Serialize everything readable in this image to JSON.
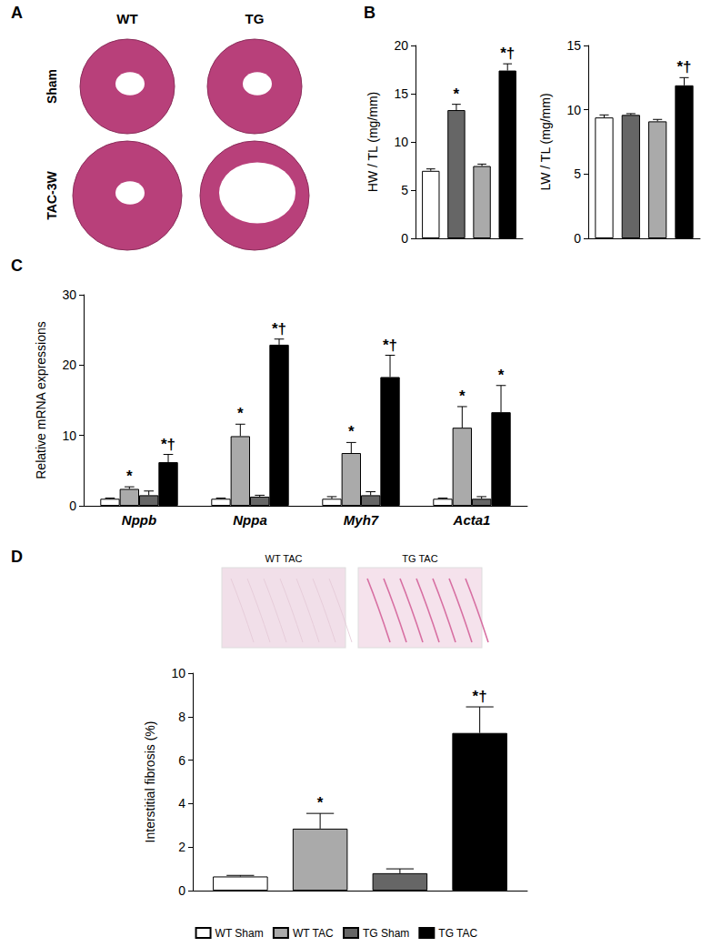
{
  "panel_labels": [
    "A",
    "B",
    "C",
    "D"
  ],
  "panel_a": {
    "columns": [
      "WT",
      "TG"
    ],
    "rows": [
      "Sham",
      "TAC-3W"
    ]
  },
  "panel_d_images": [
    "WT TAC",
    "TG TAC"
  ],
  "chart_data": [
    {
      "type": "bar",
      "y_label": "HW / TL (mg/mm)",
      "categories": [
        null
      ],
      "ylim": [
        0,
        20
      ],
      "yticks": [
        0,
        5,
        10,
        15,
        20
      ],
      "series": [
        {
          "name": "WT Sham",
          "color": "#ffffff",
          "values": [
            7.0
          ],
          "errors": [
            0.2
          ],
          "annotations": [
            null
          ]
        },
        {
          "name": "WT TAC",
          "color": "#666666",
          "values": [
            13.3
          ],
          "errors": [
            0.6
          ],
          "annotations": [
            "*"
          ]
        },
        {
          "name": "TG Sham",
          "color": "#aaaaaa",
          "values": [
            7.5
          ],
          "errors": [
            0.2
          ],
          "annotations": [
            null
          ]
        },
        {
          "name": "TG TAC",
          "color": "#000000",
          "values": [
            17.4
          ],
          "errors": [
            0.7
          ],
          "annotations": [
            "*†"
          ]
        }
      ]
    },
    {
      "type": "bar",
      "y_label": "LW / TL (mg/mm)",
      "categories": [
        null
      ],
      "ylim": [
        0,
        15
      ],
      "yticks": [
        0,
        5,
        10,
        15
      ],
      "series": [
        {
          "name": "WT Sham",
          "color": "#ffffff",
          "values": [
            9.4
          ],
          "errors": [
            0.2
          ],
          "annotations": [
            null
          ]
        },
        {
          "name": "WT TAC",
          "color": "#666666",
          "values": [
            9.6
          ],
          "errors": [
            0.1
          ],
          "annotations": [
            null
          ]
        },
        {
          "name": "TG Sham",
          "color": "#aaaaaa",
          "values": [
            9.1
          ],
          "errors": [
            0.15
          ],
          "annotations": [
            null
          ]
        },
        {
          "name": "TG TAC",
          "color": "#000000",
          "values": [
            11.9
          ],
          "errors": [
            0.6
          ],
          "annotations": [
            "*†"
          ]
        }
      ]
    },
    {
      "type": "bar",
      "y_label": "Relative mRNA expressions",
      "categories": [
        "Nppb",
        "Nppa",
        "Myh7",
        "Acta1"
      ],
      "ylim": [
        0,
        30
      ],
      "yticks": [
        0,
        10,
        20,
        30
      ],
      "series": [
        {
          "name": "WT Sham",
          "color": "#ffffff",
          "values": [
            1.0,
            1.0,
            1.0,
            1.0
          ],
          "errors": [
            0.1,
            0.1,
            0.3,
            0.1
          ],
          "annotations": [
            null,
            null,
            null,
            null
          ]
        },
        {
          "name": "WT TAC",
          "color": "#aaaaaa",
          "values": [
            2.4,
            9.9,
            7.5,
            11.1
          ],
          "errors": [
            0.3,
            1.7,
            1.5,
            3.0
          ],
          "annotations": [
            "*",
            "*",
            "*",
            "*"
          ]
        },
        {
          "name": "TG Sham",
          "color": "#666666",
          "values": [
            1.5,
            1.3,
            1.5,
            1.0
          ],
          "errors": [
            0.6,
            0.2,
            0.5,
            0.3
          ],
          "annotations": [
            null,
            null,
            null,
            null
          ]
        },
        {
          "name": "TG TAC",
          "color": "#000000",
          "values": [
            6.2,
            22.9,
            18.3,
            13.3
          ],
          "errors": [
            1.1,
            0.8,
            3.1,
            3.8
          ],
          "annotations": [
            "*†",
            "*†",
            "*†",
            "*"
          ]
        }
      ]
    },
    {
      "type": "bar",
      "y_label": "Interstitial fibrosis (%)",
      "categories": [
        null
      ],
      "ylim": [
        0,
        10
      ],
      "yticks": [
        0,
        2,
        4,
        6,
        8,
        10
      ],
      "legend": "bottom",
      "series": [
        {
          "name": "WT Sham",
          "color": "#ffffff",
          "values": [
            0.65
          ],
          "errors": [
            0.05
          ],
          "annotations": [
            null
          ]
        },
        {
          "name": "WT TAC",
          "color": "#aaaaaa",
          "values": [
            2.85
          ],
          "errors": [
            0.7
          ],
          "annotations": [
            "*"
          ]
        },
        {
          "name": "TG Sham",
          "color": "#666666",
          "values": [
            0.8
          ],
          "errors": [
            0.2
          ],
          "annotations": [
            null
          ]
        },
        {
          "name": "TG TAC",
          "color": "#000000",
          "values": [
            7.25
          ],
          "errors": [
            1.2
          ],
          "annotations": [
            "*†"
          ]
        }
      ]
    }
  ]
}
